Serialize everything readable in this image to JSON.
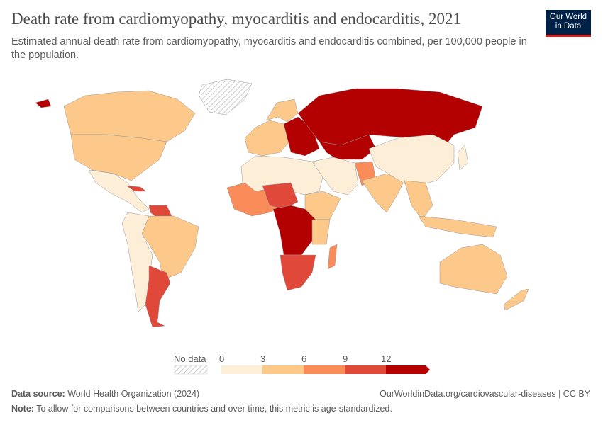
{
  "header": {
    "title": "Death rate from cardiomyopathy, myocarditis and endocarditis, 2021",
    "subtitle": "Estimated annual death rate from cardiomyopathy, myocarditis and endocarditis combined, per 100,000 people in the population.",
    "logo_text": "Our World in Data"
  },
  "legend": {
    "no_data_label": "No data",
    "ticks": [
      "0",
      "3",
      "6",
      "9",
      "12"
    ],
    "colors": [
      "#fdeed8",
      "#fcc98b",
      "#fa8c59",
      "#e0483a",
      "#b30000"
    ],
    "no_data_color": "#e5e5e5"
  },
  "footer": {
    "source_label": "Data source:",
    "source_value": "World Health Organization (2024)",
    "url": "OurWorldinData.org/cardiovascular-diseases | CC BY",
    "note_label": "Note:",
    "note_value": "To allow for comparisons between countries and over time, this metric is age-standardized."
  }
}
